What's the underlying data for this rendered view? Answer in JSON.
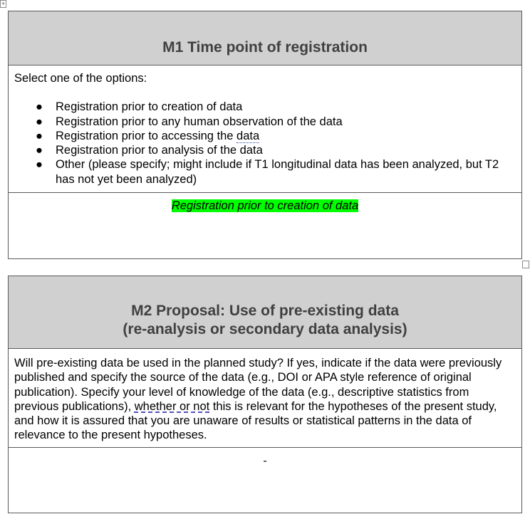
{
  "m1": {
    "title": "M1 Time point of registration",
    "instruction": "Select one of the options:",
    "bullet": "●",
    "options": [
      {
        "before": "Registration prior to creation of data",
        "mark": "",
        "after": ""
      },
      {
        "before": "Registration prior to any human observation of the data",
        "mark": "",
        "after": ""
      },
      {
        "before": "Registration prior to accessing the ",
        "mark": "data",
        "after": ""
      },
      {
        "before": "Registration prior to analysis of the data",
        "mark": "",
        "after": ""
      },
      {
        "before": "Other (please specify; might include if T1 longitudinal data has been analyzed, but T2 has not yet been analyzed)",
        "mark": "",
        "after": ""
      }
    ],
    "answer": "Registration prior to creation of data",
    "highlight_color": "#00ff00"
  },
  "m2": {
    "title_line1": "M2 Proposal: Use of pre-existing data",
    "title_line2": "(re-analysis or secondary data analysis)",
    "question_before": "Will pre-existing data be used in the planned study? If yes, indicate if the data were previously published and specify the source of the data (e.g., DOI or APA style reference of original publication). Specify your level of knowledge of the data (e.g., descriptive statistics from previous publications), ",
    "question_mark": "whether or not",
    "question_after": " this is relevant for the hypotheses of the present study, and how it is assured that you are unaware of results or statistical patterns in the data of relevance to the present hypotheses.",
    "answer": "-"
  },
  "colors": {
    "header_bg": "#d0d0d0",
    "header_text": "#404040",
    "border": "#5a5a5a"
  },
  "icons": {
    "table_move_handle": "move-icon"
  }
}
